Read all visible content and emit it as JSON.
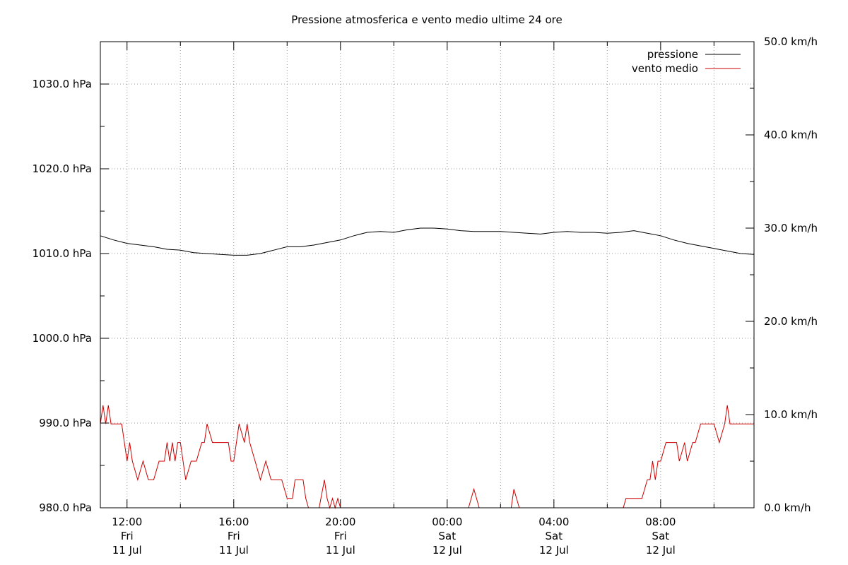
{
  "chart_data": {
    "type": "line",
    "title": "Pressione atmosferica e vento medio ultime 24 ore",
    "y_left": {
      "ticks": [
        "980.0 hPa",
        "990.0 hPa",
        "1000.0 hPa",
        "1010.0 hPa",
        "1020.0 hPa",
        "1030.0 hPa"
      ],
      "range": [
        980,
        1035
      ]
    },
    "y_right": {
      "ticks": [
        "0.0 km/h",
        "10.0 km/h",
        "20.0 km/h",
        "30.0 km/h",
        "40.0 km/h",
        "50.0 km/h"
      ],
      "range": [
        0,
        50
      ]
    },
    "x": {
      "range_hours": [
        11.0,
        35.5
      ],
      "ticks": [
        {
          "time": "12:00",
          "day": "Fri",
          "date": "11 Jul"
        },
        {
          "time": "16:00",
          "day": "Fri",
          "date": "11 Jul"
        },
        {
          "time": "20:00",
          "day": "Fri",
          "date": "11 Jul"
        },
        {
          "time": "00:00",
          "day": "Sat",
          "date": "12 Jul"
        },
        {
          "time": "04:00",
          "day": "Sat",
          "date": "12 Jul"
        },
        {
          "time": "08:00",
          "day": "Sat",
          "date": "12 Jul"
        }
      ]
    },
    "grid": true,
    "legend_position": "top-right",
    "series": [
      {
        "name": "pressione",
        "axis": "left",
        "color": "#000000",
        "points": [
          [
            11.0,
            1012.1
          ],
          [
            11.5,
            1011.6
          ],
          [
            12.0,
            1011.2
          ],
          [
            12.5,
            1011.0
          ],
          [
            13.0,
            1010.8
          ],
          [
            13.5,
            1010.5
          ],
          [
            14.0,
            1010.4
          ],
          [
            14.5,
            1010.1
          ],
          [
            15.0,
            1010.0
          ],
          [
            15.5,
            1009.9
          ],
          [
            16.0,
            1009.8
          ],
          [
            16.5,
            1009.8
          ],
          [
            17.0,
            1010.0
          ],
          [
            17.5,
            1010.4
          ],
          [
            18.0,
            1010.8
          ],
          [
            18.5,
            1010.8
          ],
          [
            19.0,
            1011.0
          ],
          [
            19.5,
            1011.3
          ],
          [
            20.0,
            1011.6
          ],
          [
            20.5,
            1012.1
          ],
          [
            21.0,
            1012.5
          ],
          [
            21.5,
            1012.6
          ],
          [
            22.0,
            1012.5
          ],
          [
            22.5,
            1012.8
          ],
          [
            23.0,
            1013.0
          ],
          [
            23.5,
            1013.0
          ],
          [
            24.0,
            1012.9
          ],
          [
            24.5,
            1012.7
          ],
          [
            25.0,
            1012.6
          ],
          [
            25.5,
            1012.6
          ],
          [
            26.0,
            1012.6
          ],
          [
            26.5,
            1012.5
          ],
          [
            27.0,
            1012.4
          ],
          [
            27.5,
            1012.3
          ],
          [
            28.0,
            1012.5
          ],
          [
            28.5,
            1012.6
          ],
          [
            29.0,
            1012.5
          ],
          [
            29.5,
            1012.5
          ],
          [
            30.0,
            1012.4
          ],
          [
            30.5,
            1012.5
          ],
          [
            31.0,
            1012.7
          ],
          [
            31.5,
            1012.4
          ],
          [
            32.0,
            1012.1
          ],
          [
            32.5,
            1011.6
          ],
          [
            33.0,
            1011.2
          ],
          [
            33.5,
            1010.9
          ],
          [
            34.0,
            1010.6
          ],
          [
            34.5,
            1010.3
          ],
          [
            35.0,
            1010.0
          ],
          [
            35.5,
            1009.9
          ]
        ]
      },
      {
        "name": "vento medio",
        "axis": "right",
        "color": "#cc0000",
        "points": [
          [
            11.0,
            9
          ],
          [
            11.1,
            11
          ],
          [
            11.2,
            9
          ],
          [
            11.3,
            11
          ],
          [
            11.4,
            9
          ],
          [
            11.6,
            9
          ],
          [
            11.8,
            9
          ],
          [
            12.0,
            5
          ],
          [
            12.1,
            7
          ],
          [
            12.2,
            5
          ],
          [
            12.4,
            3
          ],
          [
            12.6,
            5
          ],
          [
            12.8,
            3
          ],
          [
            13.0,
            3
          ],
          [
            13.2,
            5
          ],
          [
            13.4,
            5
          ],
          [
            13.5,
            7
          ],
          [
            13.6,
            5
          ],
          [
            13.7,
            7
          ],
          [
            13.8,
            5
          ],
          [
            13.9,
            7
          ],
          [
            14.0,
            7
          ],
          [
            14.2,
            3
          ],
          [
            14.4,
            5
          ],
          [
            14.6,
            5
          ],
          [
            14.8,
            7
          ],
          [
            14.9,
            7
          ],
          [
            15.0,
            9
          ],
          [
            15.2,
            7
          ],
          [
            15.4,
            7
          ],
          [
            15.6,
            7
          ],
          [
            15.8,
            7
          ],
          [
            15.9,
            5
          ],
          [
            16.0,
            5
          ],
          [
            16.2,
            9
          ],
          [
            16.4,
            7
          ],
          [
            16.5,
            9
          ],
          [
            16.6,
            7
          ],
          [
            16.8,
            5
          ],
          [
            17.0,
            3
          ],
          [
            17.2,
            5
          ],
          [
            17.4,
            3
          ],
          [
            17.8,
            3
          ],
          [
            18.0,
            1
          ],
          [
            18.2,
            1
          ],
          [
            18.3,
            3
          ],
          [
            18.6,
            3
          ],
          [
            18.7,
            1
          ],
          [
            18.8,
            0
          ],
          [
            19.2,
            0
          ],
          [
            19.4,
            3
          ],
          [
            19.5,
            1
          ],
          [
            19.6,
            0
          ],
          [
            19.7,
            1
          ],
          [
            19.8,
            0
          ],
          [
            19.9,
            1
          ],
          [
            20.0,
            0
          ],
          [
            20.1,
            0
          ],
          [
            24.8,
            0
          ],
          [
            25.0,
            2
          ],
          [
            25.2,
            0
          ],
          [
            26.4,
            0
          ],
          [
            26.5,
            2
          ],
          [
            26.7,
            0
          ],
          [
            30.6,
            0
          ],
          [
            30.7,
            1
          ],
          [
            31.0,
            1
          ],
          [
            31.3,
            1
          ],
          [
            31.5,
            3
          ],
          [
            31.6,
            3
          ],
          [
            31.7,
            5
          ],
          [
            31.8,
            3
          ],
          [
            31.9,
            5
          ],
          [
            32.0,
            5
          ],
          [
            32.2,
            7
          ],
          [
            32.4,
            7
          ],
          [
            32.6,
            7
          ],
          [
            32.7,
            5
          ],
          [
            32.9,
            7
          ],
          [
            33.0,
            5
          ],
          [
            33.2,
            7
          ],
          [
            33.3,
            7
          ],
          [
            33.5,
            9
          ],
          [
            33.8,
            9
          ],
          [
            34.0,
            9
          ],
          [
            34.2,
            7
          ],
          [
            34.4,
            9
          ],
          [
            34.5,
            11
          ],
          [
            34.6,
            9
          ],
          [
            34.8,
            9
          ],
          [
            35.5,
            9
          ]
        ]
      }
    ]
  }
}
